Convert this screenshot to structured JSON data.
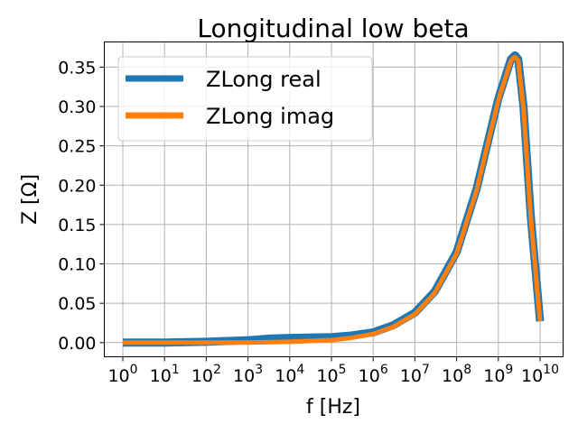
{
  "chart_data": {
    "type": "line",
    "title": "Longitudinal low beta",
    "xlabel": "f [Hz]",
    "ylabel": "Z [Ω]",
    "xscale": "log",
    "xlim": [
      1,
      10000000000
    ],
    "ylim": [
      -0.018,
      0.382
    ],
    "x_ticks": [
      {
        "value": 1,
        "base": "10",
        "exp": "0"
      },
      {
        "value": 10,
        "base": "10",
        "exp": "1"
      },
      {
        "value": 100,
        "base": "10",
        "exp": "2"
      },
      {
        "value": 1000,
        "base": "10",
        "exp": "3"
      },
      {
        "value": 10000,
        "base": "10",
        "exp": "4"
      },
      {
        "value": 100000,
        "base": "10",
        "exp": "5"
      },
      {
        "value": 1000000,
        "base": "10",
        "exp": "6"
      },
      {
        "value": 10000000,
        "base": "10",
        "exp": "7"
      },
      {
        "value": 100000000,
        "base": "10",
        "exp": "8"
      },
      {
        "value": 1000000000,
        "base": "10",
        "exp": "9"
      },
      {
        "value": 10000000000,
        "base": "10",
        "exp": "10"
      }
    ],
    "y_ticks": [
      {
        "value": 0.0,
        "label": "0.00"
      },
      {
        "value": 0.05,
        "label": "0.05"
      },
      {
        "value": 0.1,
        "label": "0.10"
      },
      {
        "value": 0.15,
        "label": "0.15"
      },
      {
        "value": 0.2,
        "label": "0.20"
      },
      {
        "value": 0.25,
        "label": "0.25"
      },
      {
        "value": 0.3,
        "label": "0.30"
      },
      {
        "value": 0.35,
        "label": "0.35"
      }
    ],
    "grid": true,
    "legend_position": "top-left",
    "series": [
      {
        "name": "ZLong real",
        "color": "#1f77b4",
        "x": [
          1,
          10,
          100,
          1000,
          3000,
          10000,
          100000,
          300000,
          1000000,
          3000000,
          10000000,
          30000000,
          100000000,
          300000000,
          1000000000,
          2000000000,
          2500000000,
          3000000000,
          4000000000,
          6000000000,
          10000000000
        ],
        "y": [
          0.0,
          0.0,
          0.001,
          0.003,
          0.005,
          0.006,
          0.007,
          0.009,
          0.013,
          0.022,
          0.038,
          0.065,
          0.115,
          0.195,
          0.31,
          0.36,
          0.365,
          0.36,
          0.3,
          0.16,
          0.027
        ]
      },
      {
        "name": "ZLong imag",
        "color": "#ff7f0e",
        "x": [
          1,
          10,
          100,
          1000,
          10000,
          100000,
          300000,
          1000000,
          3000000,
          10000000,
          30000000,
          100000000,
          300000000,
          1000000000,
          2000000000,
          2500000000,
          3000000000,
          4000000000,
          6000000000,
          10000000000
        ],
        "y": [
          0.0,
          0.0,
          0.0,
          0.0,
          0.001,
          0.003,
          0.006,
          0.011,
          0.02,
          0.036,
          0.063,
          0.113,
          0.193,
          0.308,
          0.358,
          0.363,
          0.358,
          0.298,
          0.158,
          0.027
        ]
      }
    ]
  }
}
